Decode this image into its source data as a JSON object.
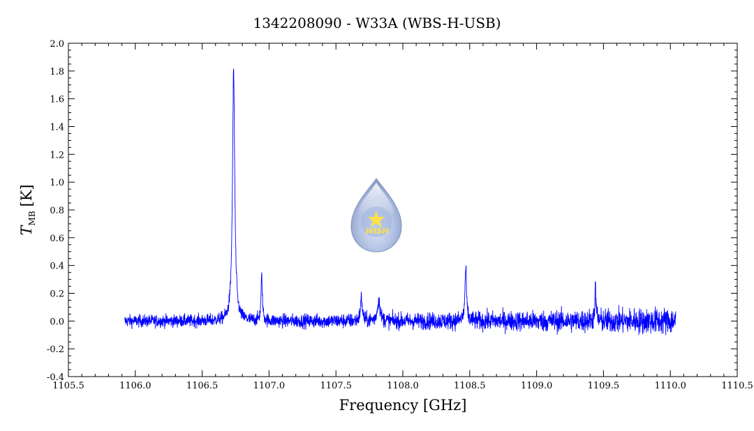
{
  "chart_data": {
    "type": "line",
    "title": "1342208090 - W33A (WBS-H-USB)",
    "xlabel": "Frequency [GHz]",
    "ylabel_symbol": "T",
    "ylabel_subscript": "MB",
    "ylabel_unit": "[K]",
    "xlim": [
      1105.5,
      1110.5
    ],
    "ylim": [
      -0.4,
      2.0
    ],
    "x_ticks": [
      "1105.5",
      "1106.0",
      "1106.5",
      "1107.0",
      "1107.5",
      "1108.0",
      "1108.5",
      "1109.0",
      "1109.5",
      "1110.0",
      "1110.5"
    ],
    "y_ticks": [
      "-0.4",
      "-0.2",
      "0.0",
      "0.2",
      "0.4",
      "0.6",
      "0.8",
      "1.0",
      "1.2",
      "1.4",
      "1.6",
      "1.8",
      "2.0"
    ],
    "grid": false,
    "series": [
      {
        "color": "#0000ff",
        "x_range": [
          1105.92,
          1110.04
        ],
        "baseline": 0.0,
        "noise_amplitude": [
          0.04,
          0.09
        ],
        "features": [
          {
            "x": 1106.735,
            "peak": 1.8
          },
          {
            "x": 1106.945,
            "peak": 0.32
          },
          {
            "x": 1107.69,
            "peak": 0.17
          },
          {
            "x": 1107.82,
            "peak": 0.15
          },
          {
            "x": 1108.47,
            "peak": 0.38
          },
          {
            "x": 1109.44,
            "peak": 0.22
          }
        ]
      }
    ],
    "logo": {
      "text": "WISH"
    }
  }
}
